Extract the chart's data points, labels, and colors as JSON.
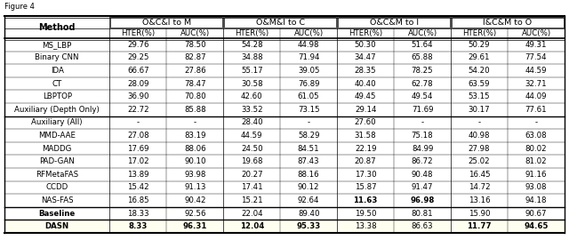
{
  "col_groups": [
    "O&C&I to M",
    "O&M&I to C",
    "O&C&M to I",
    "I&C&M to O"
  ],
  "sub_cols": [
    "HTER(%)",
    "AUC(%)"
  ],
  "methods": [
    "MS_LBP",
    "Binary CNN",
    "IDA",
    "CT",
    "LBPTOP",
    "Auxiliary (Depth Only)",
    "Auxiliary (All)",
    "MMD-AAE",
    "MADDG",
    "PAD-GAN",
    "RFMetaFAS",
    "CCDD",
    "NAS-FAS",
    "Baseline",
    "DASN"
  ],
  "data": [
    [
      29.76,
      78.5,
      54.28,
      44.98,
      50.3,
      51.64,
      50.29,
      49.31
    ],
    [
      29.25,
      82.87,
      34.88,
      71.94,
      34.47,
      65.88,
      29.61,
      77.54
    ],
    [
      66.67,
      27.86,
      55.17,
      39.05,
      28.35,
      78.25,
      54.2,
      44.59
    ],
    [
      28.09,
      78.47,
      30.58,
      76.89,
      40.4,
      62.78,
      63.59,
      32.71
    ],
    [
      36.9,
      70.8,
      42.6,
      61.05,
      49.45,
      49.54,
      53.15,
      44.09
    ],
    [
      22.72,
      85.88,
      33.52,
      73.15,
      29.14,
      71.69,
      30.17,
      77.61
    ],
    [
      "-",
      "-",
      "28.40",
      "-",
      "27.60",
      "-",
      "-",
      "-"
    ],
    [
      27.08,
      83.19,
      44.59,
      58.29,
      31.58,
      75.18,
      40.98,
      63.08
    ],
    [
      17.69,
      88.06,
      24.5,
      84.51,
      22.19,
      84.99,
      27.98,
      80.02
    ],
    [
      17.02,
      90.1,
      19.68,
      87.43,
      20.87,
      86.72,
      25.02,
      81.02
    ],
    [
      13.89,
      93.98,
      20.27,
      88.16,
      17.3,
      90.48,
      16.45,
      91.16
    ],
    [
      15.42,
      91.13,
      17.41,
      90.12,
      15.87,
      91.47,
      14.72,
      93.08
    ],
    [
      16.85,
      90.42,
      15.21,
      92.64,
      11.63,
      96.98,
      13.16,
      94.18
    ],
    [
      18.33,
      92.56,
      22.04,
      89.4,
      19.5,
      80.81,
      15.9,
      90.67
    ],
    [
      8.33,
      96.31,
      12.04,
      95.33,
      13.38,
      86.63,
      11.77,
      94.65
    ]
  ],
  "separator_after": [
    5,
    12,
    13
  ],
  "bold_data_by_row": {
    "12": [
      4,
      5
    ],
    "14": [
      0,
      1,
      2,
      3,
      6,
      7
    ]
  },
  "bold_method_rows": [
    13,
    14
  ],
  "dasn_bg": "#FFFFF0",
  "top_label": "Figure 4"
}
